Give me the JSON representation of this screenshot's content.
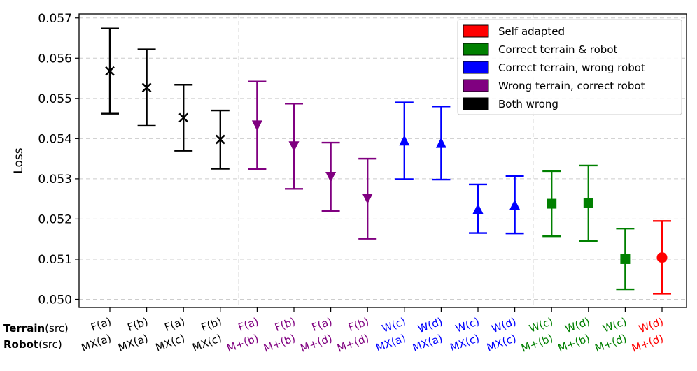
{
  "chart_data": {
    "type": "errorbar",
    "ylabel": "Loss",
    "ylim": [
      0.0498,
      0.0571
    ],
    "yticks": [
      0.05,
      0.051,
      0.052,
      0.053,
      0.054,
      0.055,
      0.056,
      0.057
    ],
    "ytick_labels": [
      "0.050",
      "0.051",
      "0.052",
      "0.053",
      "0.054",
      "0.055",
      "0.056",
      "0.057"
    ],
    "grid": true,
    "legend_position": "top-right",
    "row_labels": [
      {
        "bold": "Terrain",
        "rest": "(src)"
      },
      {
        "bold": "Robot",
        "rest": "(src)"
      }
    ],
    "groups": [
      {
        "name": "Self adapted",
        "color": "#ff0000",
        "marker": "circle"
      },
      {
        "name": "Correct terrain & robot",
        "color": "#008000",
        "marker": "square"
      },
      {
        "name": "Correct terrain, wrong robot",
        "color": "#0000ff",
        "marker": "triangle-up"
      },
      {
        "name": "Wrong terrain, correct robot",
        "color": "#800080",
        "marker": "triangle-down"
      },
      {
        "name": "Both wrong",
        "color": "#000000",
        "marker": "x"
      }
    ],
    "points": [
      {
        "terrain": "F(a)",
        "robot": "MX(a)",
        "group": "Both wrong",
        "mean": 0.05568,
        "low": 0.05462,
        "high": 0.05674
      },
      {
        "terrain": "F(b)",
        "robot": "MX(a)",
        "group": "Both wrong",
        "mean": 0.05527,
        "low": 0.05432,
        "high": 0.05622
      },
      {
        "terrain": "F(a)",
        "robot": "MX(c)",
        "group": "Both wrong",
        "mean": 0.05452,
        "low": 0.0537,
        "high": 0.05534
      },
      {
        "terrain": "F(b)",
        "robot": "MX(c)",
        "group": "Both wrong",
        "mean": 0.05398,
        "low": 0.05325,
        "high": 0.0547
      },
      {
        "terrain": "F(a)",
        "robot": "M+(b)",
        "group": "Wrong terrain, correct robot",
        "mean": 0.05433,
        "low": 0.05324,
        "high": 0.05542
      },
      {
        "terrain": "F(b)",
        "robot": "M+(b)",
        "group": "Wrong terrain, correct robot",
        "mean": 0.05381,
        "low": 0.05275,
        "high": 0.05487
      },
      {
        "terrain": "F(a)",
        "robot": "M+(d)",
        "group": "Wrong terrain, correct robot",
        "mean": 0.05305,
        "low": 0.0522,
        "high": 0.0539
      },
      {
        "terrain": "F(b)",
        "robot": "M+(d)",
        "group": "Wrong terrain, correct robot",
        "mean": 0.05251,
        "low": 0.05151,
        "high": 0.0535
      },
      {
        "terrain": "W(c)",
        "robot": "MX(a)",
        "group": "Correct terrain, wrong robot",
        "mean": 0.05395,
        "low": 0.05299,
        "high": 0.0549
      },
      {
        "terrain": "W(d)",
        "robot": "MX(a)",
        "group": "Correct terrain, wrong robot",
        "mean": 0.05389,
        "low": 0.05298,
        "high": 0.0548
      },
      {
        "terrain": "W(c)",
        "robot": "MX(c)",
        "group": "Correct terrain, wrong robot",
        "mean": 0.05225,
        "low": 0.05165,
        "high": 0.05286
      },
      {
        "terrain": "W(d)",
        "robot": "MX(c)",
        "group": "Correct terrain, wrong robot",
        "mean": 0.05235,
        "low": 0.05164,
        "high": 0.05307
      },
      {
        "terrain": "W(c)",
        "robot": "M+(b)",
        "group": "Correct terrain & robot",
        "mean": 0.05238,
        "low": 0.05157,
        "high": 0.05319
      },
      {
        "terrain": "W(d)",
        "robot": "M+(b)",
        "group": "Correct terrain & robot",
        "mean": 0.05239,
        "low": 0.05145,
        "high": 0.05333
      },
      {
        "terrain": "W(c)",
        "robot": "M+(d)",
        "group": "Correct terrain & robot",
        "mean": 0.051,
        "low": 0.05025,
        "high": 0.05176
      },
      {
        "terrain": "W(d)",
        "robot": "M+(d)",
        "group": "Self adapted",
        "mean": 0.05104,
        "low": 0.05014,
        "high": 0.05195
      }
    ]
  }
}
